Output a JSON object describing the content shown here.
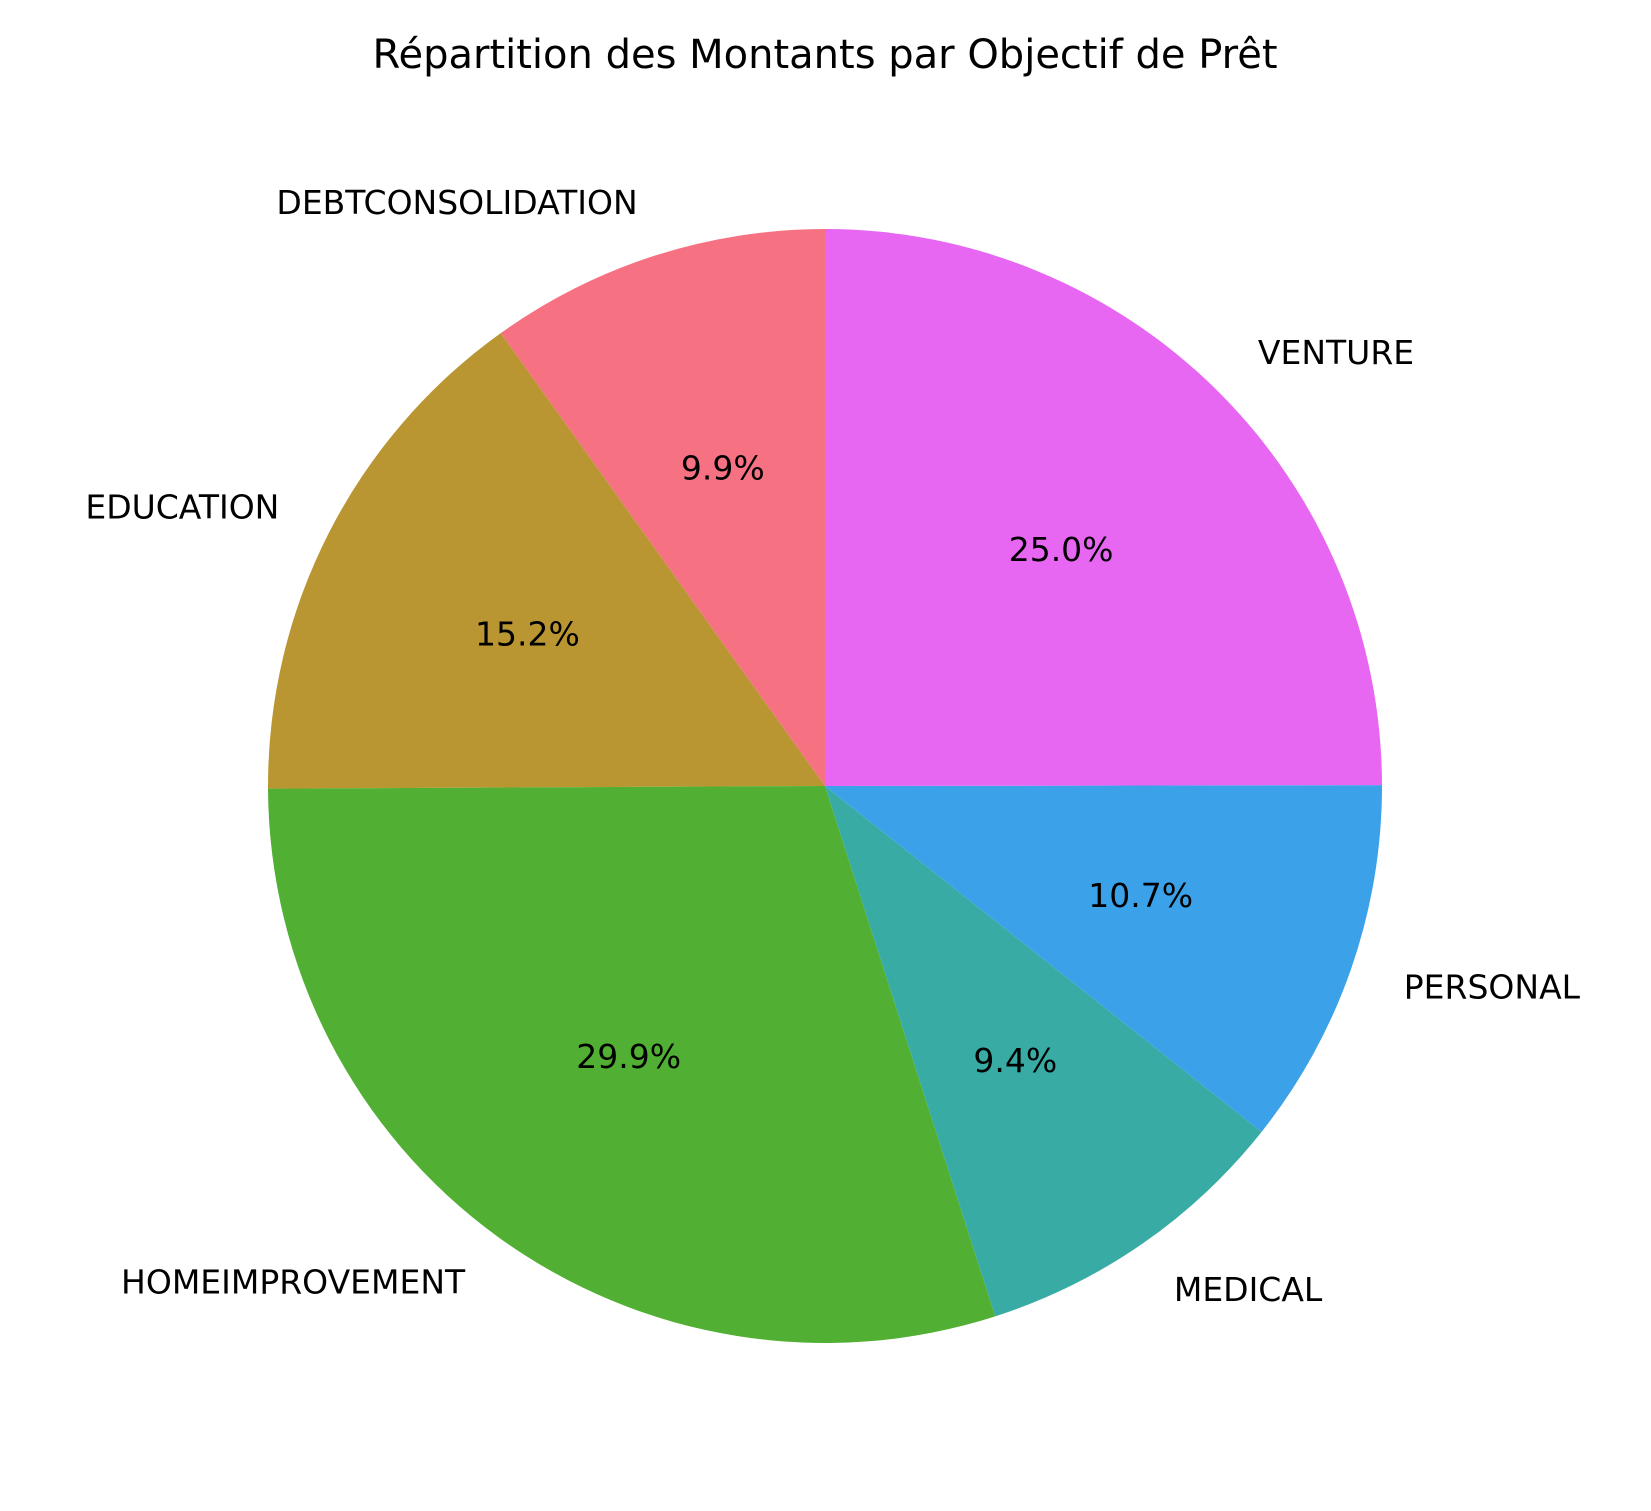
{
  "chart_data": {
    "type": "pie",
    "title": "Répartition des Montants par Objectif de Prêt",
    "start_angle_deg": 90,
    "direction": "counterclockwise",
    "slices": [
      {
        "label": "DEBTCONSOLIDATION",
        "value": 9.9,
        "pct_label": "9.9%",
        "color": "#f67283"
      },
      {
        "label": "EDUCATION",
        "value": 15.2,
        "pct_label": "15.2%",
        "color": "#ba9632"
      },
      {
        "label": "HOMEIMPROVEMENT",
        "value": 29.9,
        "pct_label": "29.9%",
        "color": "#51b033"
      },
      {
        "label": "MEDICAL",
        "value": 9.4,
        "pct_label": "9.4%",
        "color": "#38aca4"
      },
      {
        "label": "PERSONAL",
        "value": 10.7,
        "pct_label": "10.7%",
        "color": "#3ba2ea"
      },
      {
        "label": "VENTURE",
        "value": 25.0,
        "pct_label": "25.0%",
        "color": "#e767f3"
      }
    ]
  }
}
